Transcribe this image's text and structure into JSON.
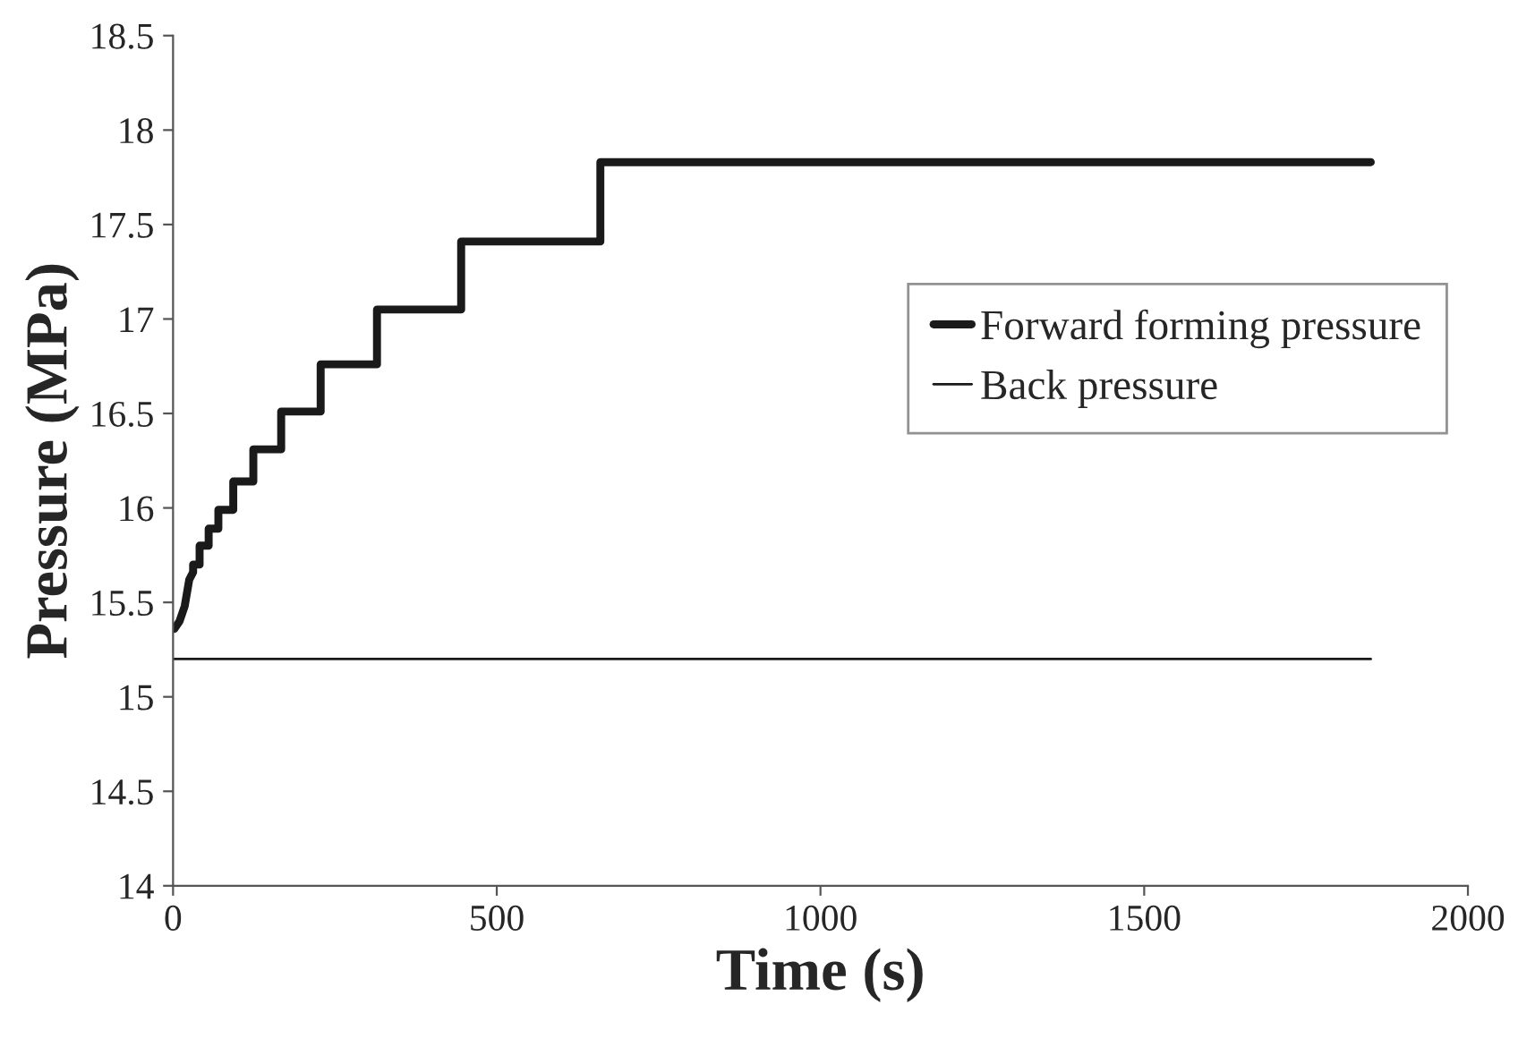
{
  "chart_data": {
    "type": "line",
    "xlabel": "Time (s)",
    "ylabel": "Pressure (MPa)",
    "xlim": [
      0,
      2000
    ],
    "xticks": [
      0,
      500,
      1000,
      1500,
      2000
    ],
    "ylim": [
      14,
      18.5
    ],
    "yticks": [
      14,
      14.5,
      15,
      15.5,
      16,
      16.5,
      17,
      17.5,
      18,
      18.5
    ],
    "grid": false,
    "legend": "right",
    "marker": "none",
    "line_style": "solid",
    "series": [
      {
        "name": "Forward forming pressure",
        "color": "#1a1a1a",
        "x": [
          2,
          10,
          18,
          25,
          31,
          31,
          41,
          41,
          55,
          55,
          70,
          70,
          93,
          93,
          124,
          124,
          167,
          167,
          228,
          228,
          315,
          315,
          445,
          445,
          660,
          660,
          1850
        ],
        "values": [
          15.36,
          15.4,
          15.48,
          15.62,
          15.66,
          15.7,
          15.7,
          15.8,
          15.8,
          15.89,
          15.89,
          15.99,
          15.99,
          16.14,
          16.14,
          16.31,
          16.31,
          16.51,
          16.51,
          16.76,
          16.76,
          17.05,
          17.05,
          17.41,
          17.41,
          17.83,
          17.83
        ]
      },
      {
        "name": "Back pressure",
        "color": "#1a1a1a",
        "x": [
          0,
          1850
        ],
        "values": [
          15.2,
          15.2
        ]
      }
    ]
  }
}
